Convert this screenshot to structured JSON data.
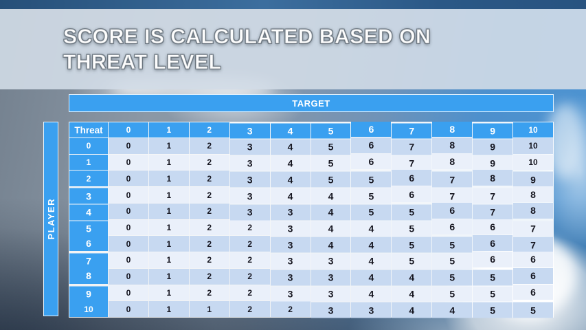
{
  "slide_title": {
    "line1": "SCORE IS CALCULATED BASED ON",
    "line2": "THREAT LEVEL"
  },
  "chart_data": {
    "type": "table",
    "title": "SCORE IS CALCULATED BASED ON THREAT LEVEL",
    "column_axis_label": "TARGET",
    "row_axis_label": "PLAYER",
    "row_header_label": "Threat",
    "column_headers": [
      "0",
      "1",
      "2",
      "3",
      "4",
      "5",
      "6",
      "7",
      "8",
      "9",
      "10"
    ],
    "row_headers": [
      "0",
      "1",
      "2",
      "3",
      "4",
      "5",
      "6",
      "7",
      "8",
      "9",
      "10"
    ],
    "values": [
      [
        0,
        1,
        2,
        3,
        4,
        5,
        6,
        7,
        8,
        9,
        10
      ],
      [
        0,
        1,
        2,
        3,
        4,
        5,
        6,
        7,
        8,
        9,
        10
      ],
      [
        0,
        1,
        2,
        3,
        4,
        5,
        5,
        6,
        7,
        8,
        9
      ],
      [
        0,
        1,
        2,
        3,
        4,
        4,
        5,
        6,
        7,
        7,
        8
      ],
      [
        0,
        1,
        2,
        3,
        3,
        4,
        5,
        5,
        6,
        7,
        8
      ],
      [
        0,
        1,
        2,
        2,
        3,
        4,
        4,
        5,
        6,
        6,
        7
      ],
      [
        0,
        1,
        2,
        2,
        3,
        4,
        4,
        5,
        5,
        6,
        7
      ],
      [
        0,
        1,
        2,
        2,
        3,
        3,
        4,
        5,
        5,
        6,
        6
      ],
      [
        0,
        1,
        2,
        2,
        3,
        3,
        4,
        4,
        5,
        5,
        6
      ],
      [
        0,
        1,
        2,
        2,
        3,
        3,
        4,
        4,
        5,
        5,
        6
      ],
      [
        0,
        1,
        1,
        2,
        2,
        3,
        3,
        4,
        4,
        5,
        5
      ]
    ]
  },
  "colors": {
    "accent_blue": "#3aa0f0",
    "row_shaded": "#c7d9f1",
    "row_light": "#eaf0fa",
    "cell_text": "#15151f",
    "header_text": "#ffffff",
    "top_sky": "#2b5886",
    "title_band": "#d1dce7"
  }
}
